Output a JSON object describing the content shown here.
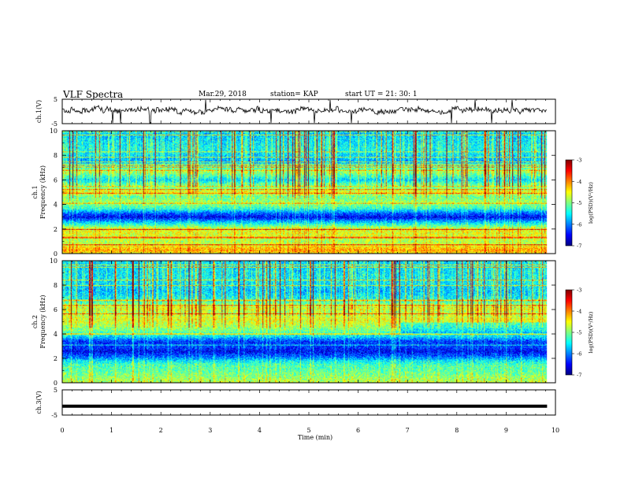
{
  "header": {
    "title": "VLF Spectra",
    "date": "Mar.29, 2018",
    "station": "station= KAP",
    "start": "start  UT =   21: 30: 1"
  },
  "chart_data": {
    "type": "heatmap",
    "x_axis": {
      "label": "Time  (min)",
      "range": [
        0,
        10
      ],
      "ticks": [
        "0",
        "1",
        "2",
        "3",
        "4",
        "5",
        "6",
        "7",
        "8",
        "9",
        "10"
      ]
    },
    "panels": [
      {
        "id": "ch1-waveform",
        "type": "line",
        "ylabel": "ch.1(V)",
        "ylim": [
          -5,
          5
        ],
        "yticks": [
          "5",
          "-5"
        ],
        "baseline": 0.5,
        "noise_amplitude": 1.8
      },
      {
        "id": "ch1-spectrogram",
        "type": "heatmap",
        "ylabel_line1": "ch.1",
        "ylabel_line2": "Frequency  (kHz)",
        "ylim": [
          0,
          10
        ],
        "yticks": [
          "0",
          "2",
          "4",
          "6",
          "8",
          "10"
        ],
        "colorbar": {
          "label": "log(PSD)(V²/Hz)",
          "range": [
            -7,
            -3
          ],
          "ticks": [
            "-3",
            "-4",
            "-5",
            "-6",
            "-7"
          ]
        },
        "level_profile_khz": [
          [
            0,
            -4.6
          ],
          [
            0.3,
            -4.2
          ],
          [
            0.7,
            -4.6
          ],
          [
            1.0,
            -4.9
          ],
          [
            1.5,
            -4.7
          ],
          [
            2.0,
            -4.6
          ],
          [
            2.3,
            -5.2
          ],
          [
            2.7,
            -6.0
          ],
          [
            3.0,
            -6.6
          ],
          [
            3.3,
            -6.2
          ],
          [
            3.7,
            -5.4
          ],
          [
            4.2,
            -4.9
          ],
          [
            4.7,
            -5.2
          ],
          [
            5.0,
            -4.6
          ],
          [
            5.3,
            -5.0
          ],
          [
            5.7,
            -5.3
          ],
          [
            6.0,
            -5.8
          ],
          [
            6.7,
            -5.0
          ],
          [
            7.5,
            -6.0
          ],
          [
            8.5,
            -5.6
          ],
          [
            10.0,
            -5.9
          ]
        ]
      },
      {
        "id": "ch2-spectrogram",
        "type": "heatmap",
        "ylabel_line1": "ch.2",
        "ylabel_line2": "Frequency  (kHz)",
        "ylim": [
          0,
          10
        ],
        "yticks": [
          "0",
          "2",
          "4",
          "6",
          "8",
          "10"
        ],
        "colorbar": {
          "label": "log(PSD)(V²/Hz)",
          "range": [
            -7,
            -3
          ],
          "ticks": [
            "-3",
            "-4",
            "-5",
            "-6",
            "-7"
          ]
        },
        "level_profile_khz": [
          [
            0,
            -4.8
          ],
          [
            0.5,
            -5.0
          ],
          [
            1.0,
            -5.2
          ],
          [
            1.5,
            -5.3
          ],
          [
            1.8,
            -5.6
          ],
          [
            2.2,
            -6.2
          ],
          [
            2.6,
            -6.6
          ],
          [
            3.0,
            -6.3
          ],
          [
            3.4,
            -6.4
          ],
          [
            3.8,
            -5.7
          ],
          [
            4.3,
            -5.1
          ],
          [
            4.8,
            -4.9
          ],
          [
            5.2,
            -4.7
          ],
          [
            5.8,
            -5.0
          ],
          [
            6.2,
            -4.8
          ],
          [
            6.8,
            -5.6
          ],
          [
            7.5,
            -5.9
          ],
          [
            8.5,
            -5.7
          ],
          [
            10.0,
            -5.8
          ]
        ]
      },
      {
        "id": "ch3-waveform",
        "type": "line",
        "ylabel": "ch.3(V)",
        "ylim": [
          -5,
          5
        ],
        "yticks": [
          "5",
          "-5"
        ],
        "constant_value": -1.5
      }
    ]
  },
  "colors": {
    "colormap": [
      "#000080",
      "#0000ff",
      "#0080ff",
      "#00ffff",
      "#80ff80",
      "#ffff00",
      "#ff8000",
      "#ff0000",
      "#800000"
    ],
    "trace": "#000000"
  }
}
